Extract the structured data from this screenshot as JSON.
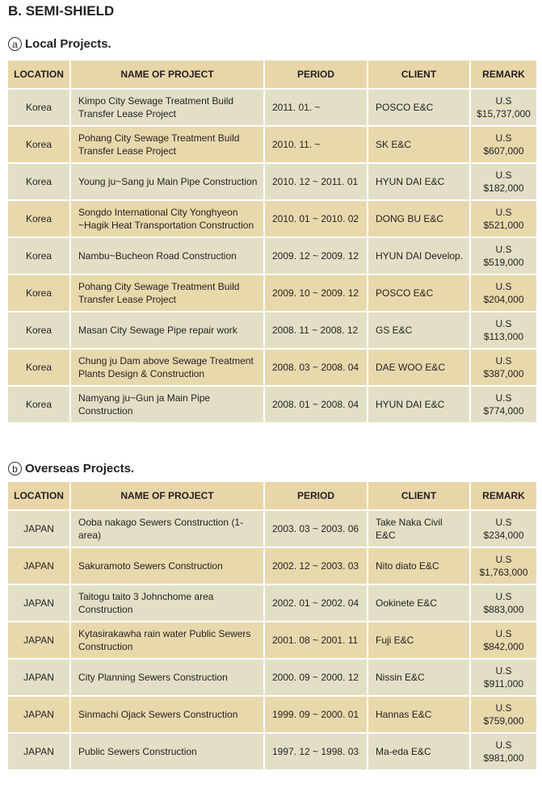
{
  "title": "B. SEMI-SHIELD",
  "headers": [
    "LOCATION",
    "NAME OF PROJECT",
    "PERIOD",
    "CLIENT",
    "REMARK"
  ],
  "local": {
    "marker": "a",
    "heading": "Local Projects.",
    "rows": [
      [
        "Korea",
        "Kimpo City Sewage Treatment Build Transfer Lease Project",
        "2011. 01. ~",
        "POSCO E&C",
        "U.S",
        "$15,737,000"
      ],
      [
        "Korea",
        "Pohang City Sewage Treatment Build Transfer Lease Project",
        "2010. 11. ~",
        "SK E&C",
        "U.S",
        "$607,000"
      ],
      [
        "Korea",
        "Young ju~Sang ju Main Pipe Construction",
        "2010. 12 ~ 2011. 01",
        "HYUN DAI E&C",
        "U.S",
        "$182,000"
      ],
      [
        "Korea",
        "Songdo International City Yonghyeon ~Hagik Heat Transportation Construction",
        "2010. 01 ~ 2010. 02",
        "DONG BU E&C",
        "U.S",
        "$521,000"
      ],
      [
        "Korea",
        "Nambu~Bucheon Road Construction",
        "2009. 12 ~ 2009. 12",
        "HYUN DAI Develop.",
        "U.S",
        "$519,000"
      ],
      [
        "Korea",
        "Pohang City Sewage Treatment Build Transfer Lease Project",
        "2009. 10 ~ 2009. 12",
        "POSCO E&C",
        "U.S",
        "$204,000"
      ],
      [
        "Korea",
        "Masan City Sewage Pipe repair work",
        "2008. 11 ~ 2008. 12",
        "GS E&C",
        "U.S",
        "$113,000"
      ],
      [
        "Korea",
        "Chung ju Dam above Sewage Treatment Plants Design & Construction",
        "2008. 03 ~ 2008. 04",
        "DAE WOO E&C",
        "U.S",
        "$387,000"
      ],
      [
        "Korea",
        "Namyang ju~Gun ja Main Pipe Construction",
        "2008. 01 ~ 2008. 04",
        "HYUN DAI E&C",
        "U.S",
        "$774,000"
      ]
    ]
  },
  "overseas": {
    "marker": "b",
    "heading": "Overseas Projects.",
    "rows": [
      [
        "JAPAN",
        "Ooba nakago Sewers Construction (1-area)",
        "2003. 03 ~ 2003. 06",
        "Take Naka Civil E&C",
        "U.S",
        "$234,000"
      ],
      [
        "JAPAN",
        "Sakuramoto Sewers Construction",
        "2002. 12 ~ 2003. 03",
        "Nito diato E&C",
        "U.S",
        "$1,763,000"
      ],
      [
        "JAPAN",
        "Taitogu taito 3 Johnchome area Construction",
        "2002. 01 ~ 2002. 04",
        "Ookinete E&C",
        "U.S",
        "$883,000"
      ],
      [
        "JAPAN",
        "Kytasirakawha rain water Public Sewers Construction",
        "2001. 08 ~ 2001. 11",
        "Fuji E&C",
        "U.S",
        "$842,000"
      ],
      [
        "JAPAN",
        "City Planning Sewers Construction",
        "2000. 09 ~ 2000. 12",
        "Nissin E&C",
        "U.S",
        "$911,000"
      ],
      [
        "JAPAN",
        "Sinmachi Ojack Sewers Construction",
        "1999. 09 ~ 2000. 01",
        "Hannas E&C",
        "U.S",
        "$759,000"
      ],
      [
        "JAPAN",
        "Public Sewers Construction",
        "1997. 12 ~ 1998. 03",
        "Ma-eda E&C",
        "U.S",
        "$981,000"
      ]
    ]
  }
}
